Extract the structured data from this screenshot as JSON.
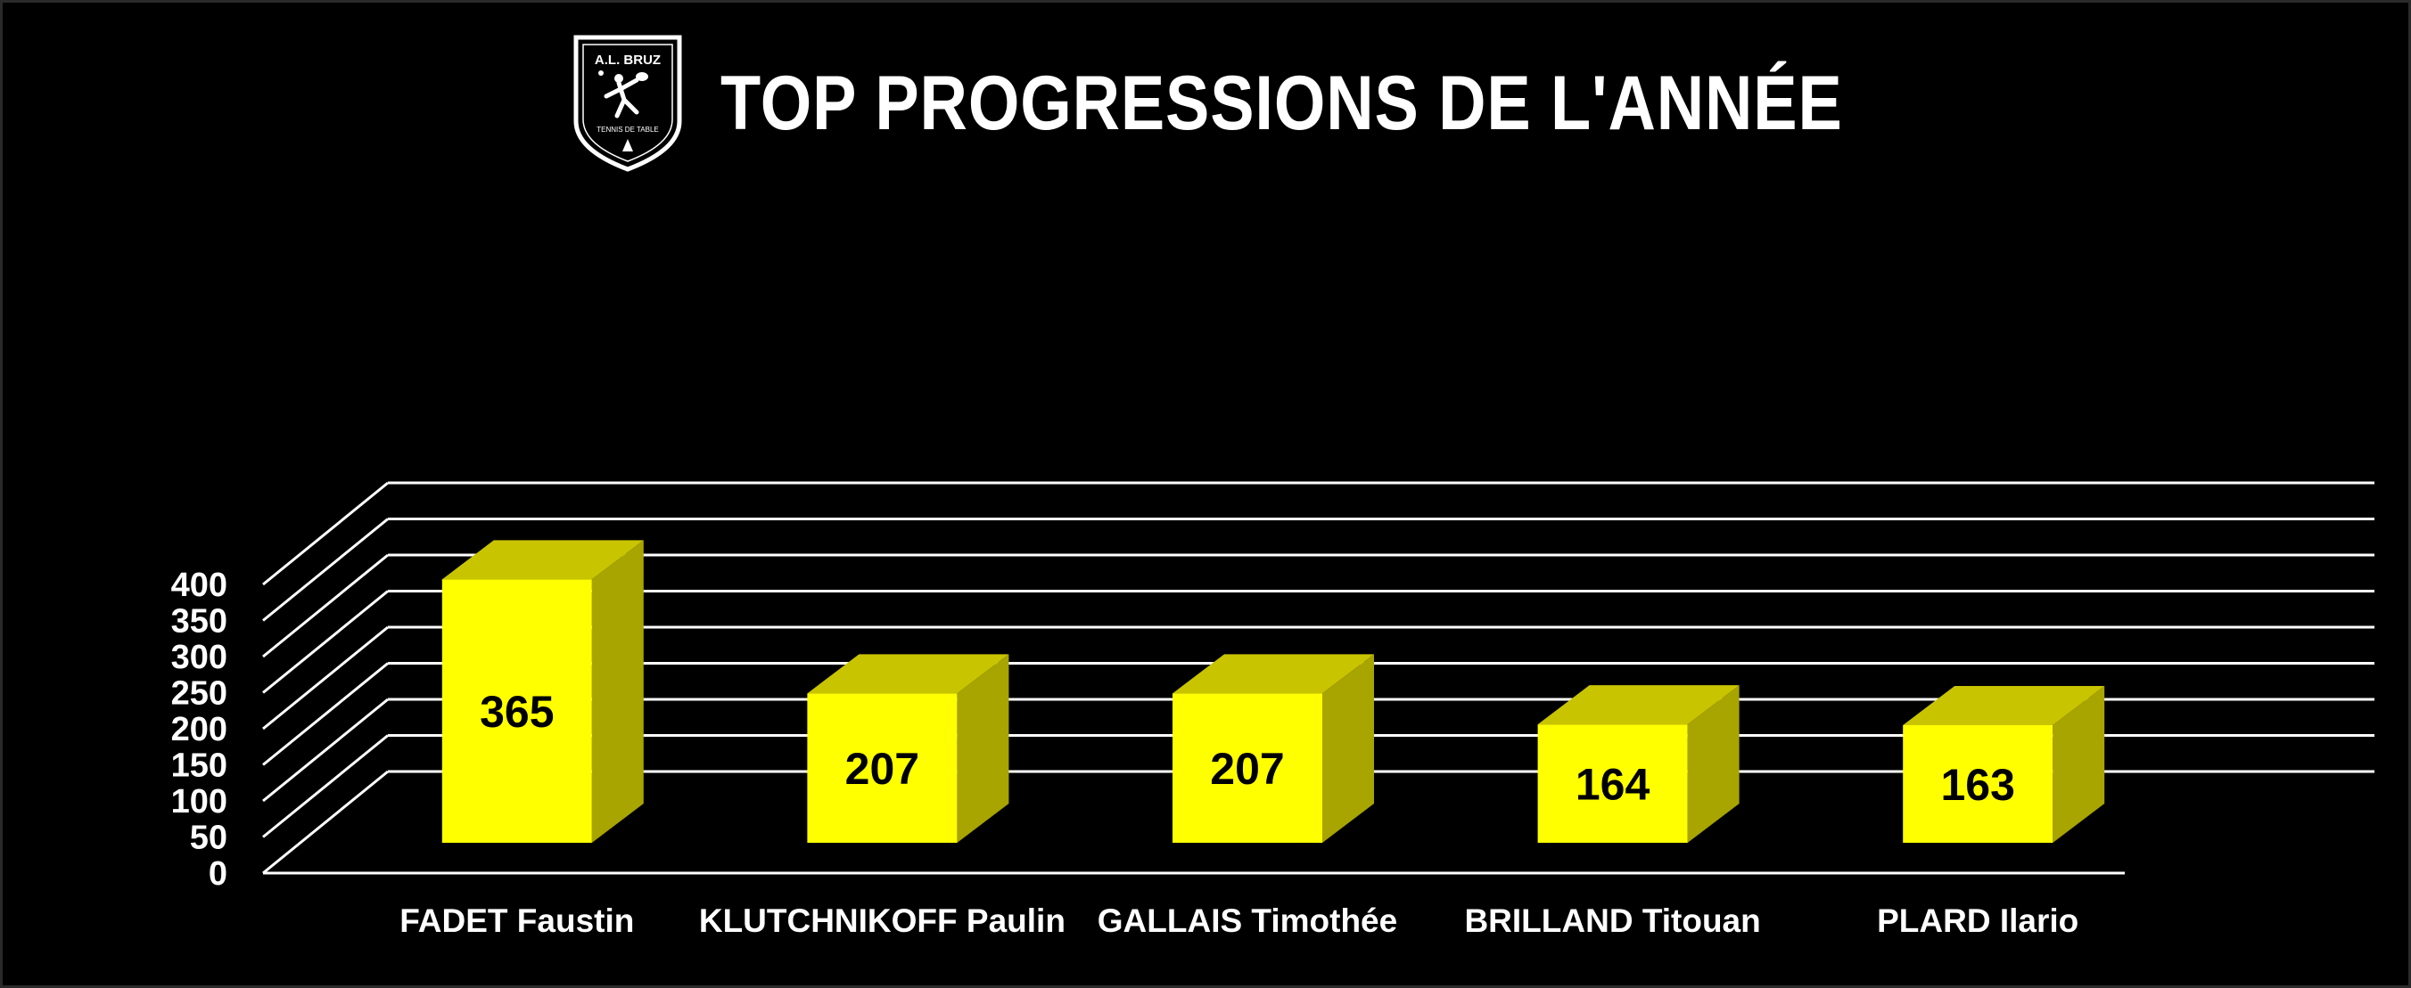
{
  "header": {
    "title": "TOP PROGRESSIONS DE L'ANNÉE",
    "logo": {
      "name": "A.L. BRUZ",
      "subtitle": "TENNIS DE TABLE",
      "icon": "table-tennis-player-shield"
    }
  },
  "chart_data": {
    "type": "bar",
    "style": "3d-column",
    "title": "TOP PROGRESSIONS DE L'ANNÉE",
    "categories": [
      "FADET Faustin",
      "KLUTCHNIKOFF Paulin",
      "GALLAIS Timothée",
      "BRILLAND Titouan",
      "PLARD Ilario"
    ],
    "values": [
      365,
      207,
      207,
      164,
      163
    ],
    "data_labels": [
      "365",
      "207",
      "207",
      "164",
      "163"
    ],
    "ylim": [
      0,
      400
    ],
    "y_ticks": [
      "0",
      "50",
      "100",
      "150",
      "200",
      "250",
      "300",
      "350",
      "400"
    ],
    "grid": true,
    "legend": "none",
    "colors": {
      "background": "#000000",
      "bar_front": "#FFFF00",
      "bar_top": "#C9C400",
      "bar_side": "#A8A400",
      "grid": "#FFFFFF",
      "text": "#FFFFFF",
      "label": "#000000"
    }
  }
}
